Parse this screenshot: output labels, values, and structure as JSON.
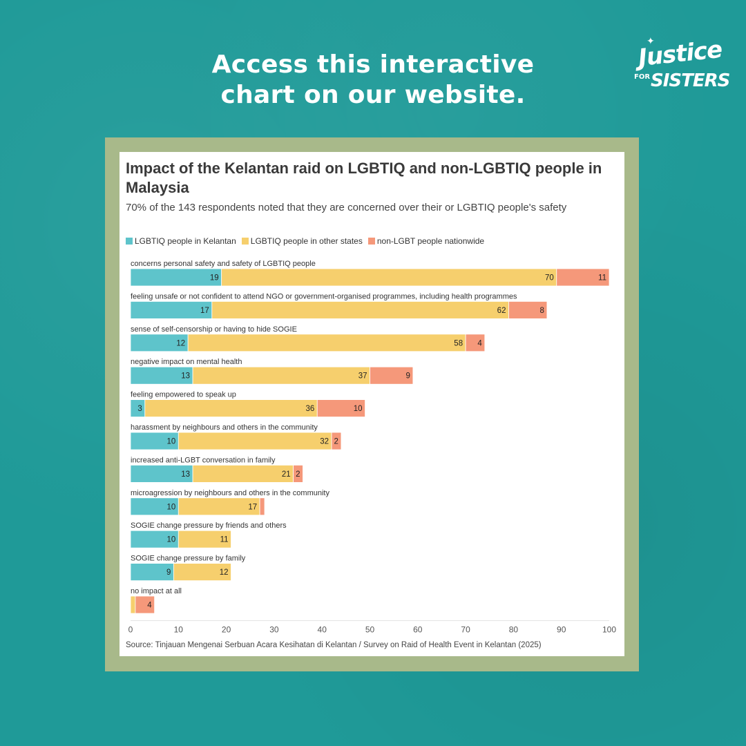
{
  "header": {
    "headline_line1": "Access this interactive",
    "headline_line2": "chart on our website.",
    "logo": {
      "word1": "Justice",
      "word2": "FOR",
      "word3": "SISTERS",
      "icon": "star-icon"
    }
  },
  "colors": {
    "background": "#1f9a98",
    "frame": "#a8b98a",
    "series": [
      "#5ec4cb",
      "#f6cf6d",
      "#f5987a"
    ]
  },
  "chart_data": {
    "type": "bar",
    "orientation": "horizontal",
    "stacked": true,
    "title": "Impact of the Kelantan raid on LGBTIQ and non-LGBTIQ people in Malaysia",
    "subtitle": "70% of the 143 respondents noted that they are concerned over their or LGBTIQ people's safety",
    "legend_position": "top-left",
    "xlim": [
      0,
      100
    ],
    "xticks": [
      0,
      10,
      20,
      30,
      40,
      50,
      60,
      70,
      80,
      90,
      100
    ],
    "categories": [
      "concerns personal safety and safety of LGBTIQ people",
      "feeling unsafe or not confident to attend NGO or government-organised programmes, including health programmes",
      "sense of self-censorship or having to hide SOGIE",
      "negative impact on mental health",
      "feeling empowered to speak up",
      "harassment by neighbours and others in the community",
      "increased anti-LGBT conversation in family",
      "microagression by neighbours and others in the community",
      "SOGIE change pressure by friends and others",
      "SOGIE change pressure by family",
      "no impact at all"
    ],
    "series": [
      {
        "name": "LGBTIQ people in Kelantan",
        "values": [
          19,
          17,
          12,
          13,
          3,
          10,
          13,
          10,
          10,
          9,
          0
        ]
      },
      {
        "name": "LGBTIQ people in other states",
        "values": [
          70,
          62,
          58,
          37,
          36,
          32,
          21,
          17,
          11,
          12,
          1
        ]
      },
      {
        "name": "non-LGBT people nationwide",
        "values": [
          11,
          8,
          4,
          9,
          10,
          2,
          2,
          1,
          0,
          0,
          4
        ]
      }
    ],
    "data_labels": [
      [
        "19",
        "70",
        "11"
      ],
      [
        "17",
        "62",
        "8"
      ],
      [
        "12",
        "58",
        "4"
      ],
      [
        "13",
        "37",
        "9"
      ],
      [
        "3",
        "36",
        "10"
      ],
      [
        "10",
        "32",
        "2"
      ],
      [
        "13",
        "21",
        "2"
      ],
      [
        "10",
        "17",
        ""
      ],
      [
        "10",
        "11",
        ""
      ],
      [
        "9",
        "12",
        ""
      ],
      [
        "",
        "",
        "4"
      ]
    ],
    "source": "Source: Tinjauan Mengenai Serbuan Acara Kesihatan di Kelantan / Survey on Raid of Health Event in Kelantan (2025)"
  }
}
